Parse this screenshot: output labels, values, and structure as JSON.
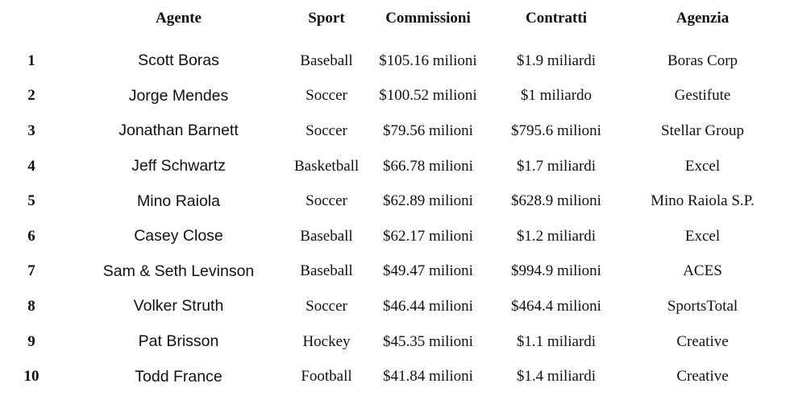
{
  "headers": [
    "",
    "Agente",
    "Sport",
    "Commissioni",
    "Contratti",
    "Agenzia"
  ],
  "rows": [
    [
      "1",
      "Scott Boras",
      "Baseball",
      "$105.16 milioni",
      "$1.9 miliardi",
      "Boras Corp"
    ],
    [
      "2",
      "Jorge Mendes",
      "Soccer",
      "$100.52 milioni",
      "$1 miliardo",
      "Gestifute"
    ],
    [
      "3",
      "Jonathan Barnett",
      "Soccer",
      "$79.56 milioni",
      "$795.6 milioni",
      "Stellar Group"
    ],
    [
      "4",
      "Jeff Schwartz",
      "Basketball",
      "$66.78 milioni",
      "$1.7 miliardi",
      "Excel"
    ],
    [
      "5",
      "Mino Raiola",
      "Soccer",
      "$62.89 milioni",
      "$628.9 milioni",
      "Mino Raiola S.P."
    ],
    [
      "6",
      "Casey Close",
      "Baseball",
      "$62.17 milioni",
      "$1.2 miliardi",
      "Excel"
    ],
    [
      "7",
      "Sam & Seth Levinson",
      "Baseball",
      "$49.47 milioni",
      "$994.9 milioni",
      "ACES"
    ],
    [
      "8",
      "Volker Struth",
      "Soccer",
      "$46.44 milioni",
      "$464.4 milioni",
      "SportsTotal"
    ],
    [
      "9",
      "Pat Brisson",
      "Hockey",
      "$45.35 milioni",
      "$1.1 miliardi",
      "Creative"
    ],
    [
      "10",
      "Todd France",
      "Football",
      "$41.84 milioni",
      "$1.4 miliardi",
      "Creative"
    ]
  ]
}
